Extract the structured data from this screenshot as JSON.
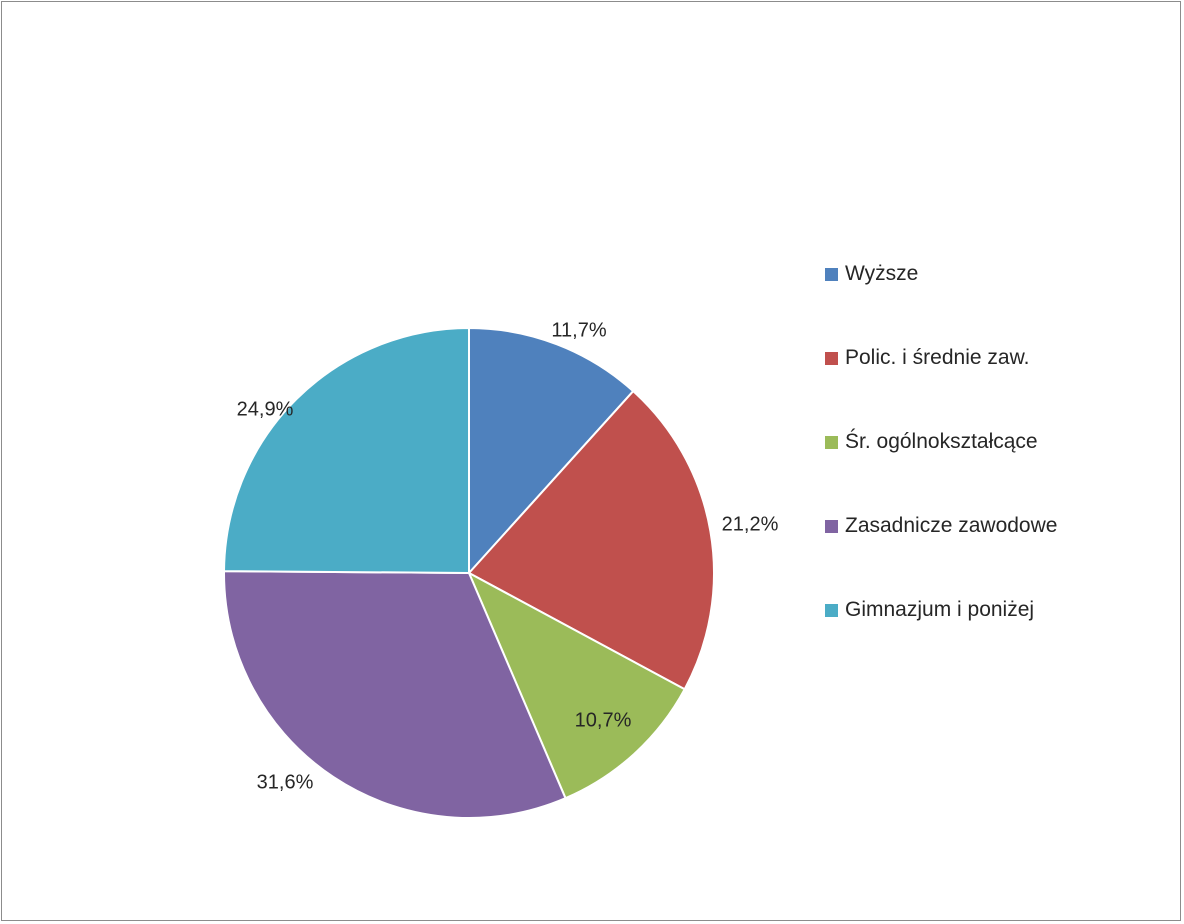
{
  "chart_data": {
    "type": "pie",
    "title": "",
    "start_angle_deg": 0,
    "direction": "clockwise",
    "legend_position": "right",
    "categories": [
      "Wyższe",
      "Polic. i średnie zaw.",
      "Śr. ogólnokształcące",
      "Zasadnicze zawodowe",
      "Gimnazjum i poniżej"
    ],
    "values": [
      11.7,
      21.2,
      10.7,
      31.6,
      24.9
    ],
    "data_labels": [
      "11,7%",
      "21,2%",
      "10,7%",
      "31,6%",
      "24,9%"
    ],
    "colors": [
      "#4f81bd",
      "#c0504d",
      "#9bbb59",
      "#8064a2",
      "#4bacc6"
    ],
    "slice_border_color": "#ffffff"
  }
}
